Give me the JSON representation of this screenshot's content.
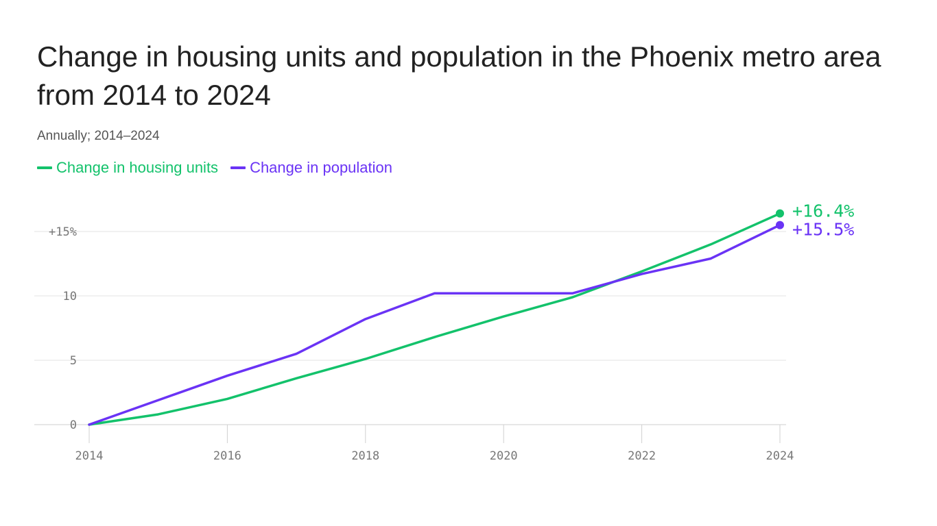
{
  "chart_data": {
    "type": "line",
    "title": "Change in housing units and population in the Phoenix metro area from 2014 to 2024",
    "subtitle": "Annually; 2014–2024",
    "x": [
      2014,
      2015,
      2016,
      2017,
      2018,
      2019,
      2020,
      2021,
      2022,
      2023,
      2024
    ],
    "x_ticks": [
      "2014",
      "2016",
      "2018",
      "2020",
      "2022",
      "2024"
    ],
    "y_ticks": [
      "0",
      "5",
      "10",
      "+15%"
    ],
    "y_tick_values": [
      0,
      5,
      10,
      15
    ],
    "ylim": [
      0,
      17.5
    ],
    "xlim": [
      2014,
      2024
    ],
    "grid": true,
    "legend_position": "top-left",
    "series": [
      {
        "name": "Change in housing units",
        "color": "#13c26b",
        "values": [
          0,
          0.8,
          2.0,
          3.6,
          5.1,
          6.8,
          8.4,
          9.9,
          11.9,
          14.0,
          16.4
        ],
        "end_label": "+16.4%"
      },
      {
        "name": "Change in population",
        "color": "#6a33f5",
        "values": [
          0,
          1.9,
          3.8,
          5.5,
          8.2,
          10.2,
          10.2,
          10.2,
          11.7,
          12.9,
          15.5
        ],
        "end_label": "+15.5%"
      }
    ]
  }
}
